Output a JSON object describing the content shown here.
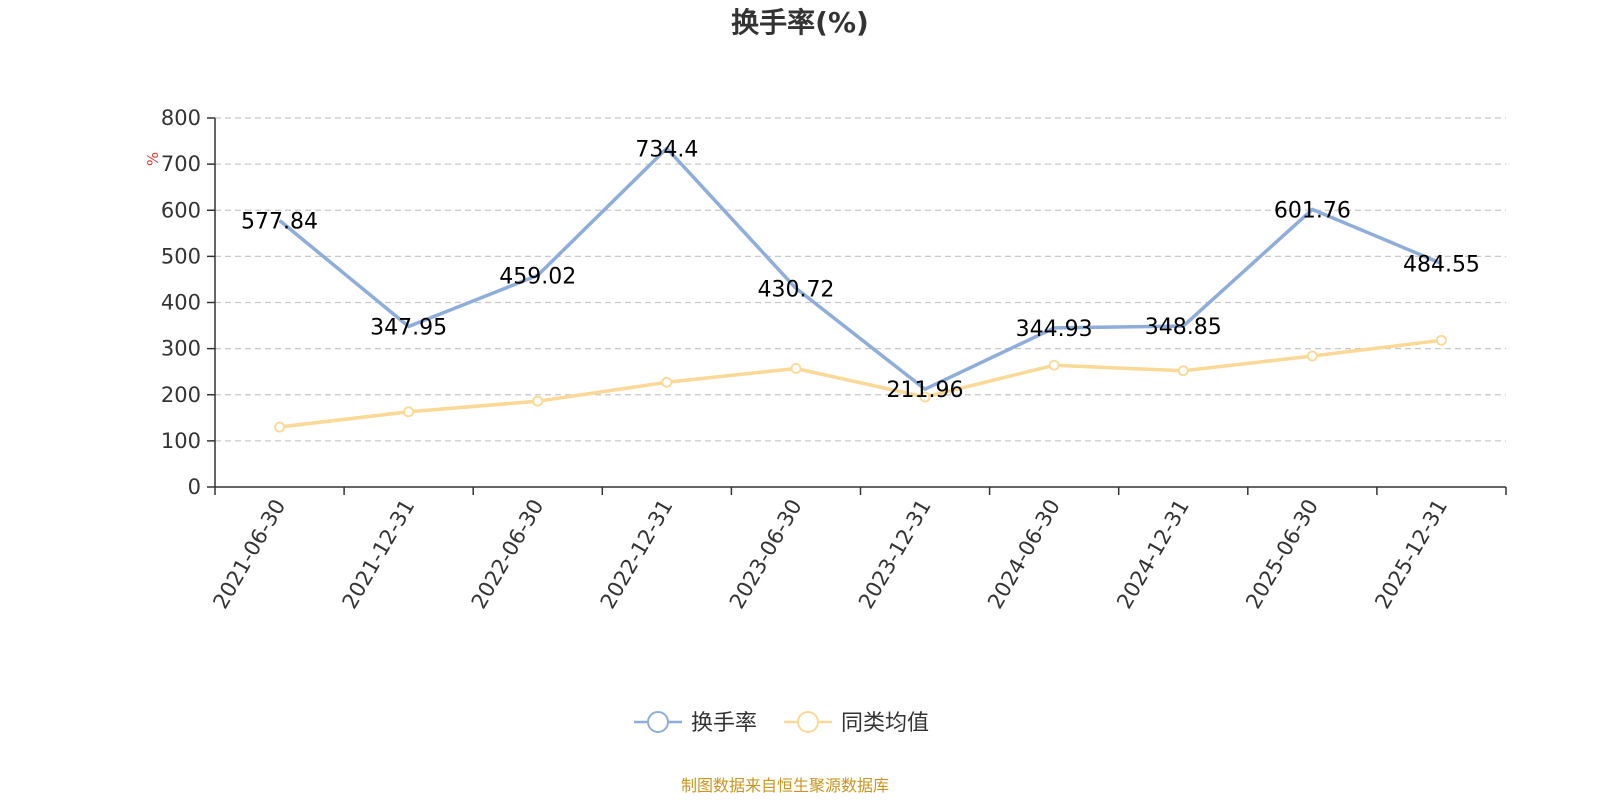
{
  "chart_data": {
    "type": "line",
    "title": "换手率(%)",
    "ylabel": "%",
    "ylim": [
      0,
      800
    ],
    "yticks": [
      0,
      100,
      200,
      300,
      400,
      500,
      600,
      700,
      800
    ],
    "grid": true,
    "legend_position": "bottom",
    "categories": [
      "2021-06-30",
      "2021-12-31",
      "2022-06-30",
      "2022-12-31",
      "2023-06-30",
      "2023-12-31",
      "2024-06-30",
      "2024-12-31",
      "2025-06-30",
      "2025-12-31"
    ],
    "series": [
      {
        "name": "换手率",
        "color": "#8eaddb",
        "values": [
          577.84,
          347.95,
          459.02,
          734.4,
          430.72,
          211.96,
          344.93,
          348.85,
          601.76,
          484.55
        ],
        "labels": [
          "577.84",
          "347.95",
          "459.02",
          "734.4",
          "430.72",
          "211.96",
          "344.93",
          "348.85",
          "601.76",
          "484.55"
        ]
      },
      {
        "name": "同类均值",
        "color": "#fad896",
        "values": [
          130,
          163,
          186,
          227,
          257,
          195,
          264,
          252,
          284,
          318
        ]
      }
    ],
    "source": "制图数据来自恒生聚源数据库",
    "source_color": "#c8961e",
    "unit_color": "#e53935"
  }
}
